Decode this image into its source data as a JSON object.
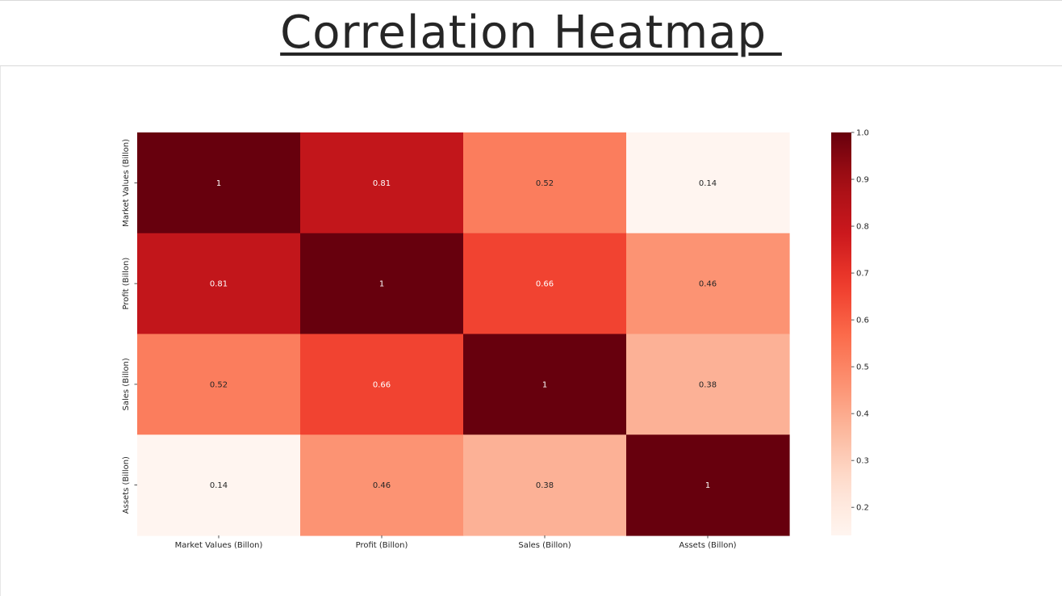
{
  "header": {
    "title": "Correlation Heatmap "
  },
  "chart_data": {
    "type": "heatmap",
    "title": "",
    "xlabel": "",
    "ylabel": "",
    "x_categories": [
      "Market Values (Billon)",
      "Profit (Billon)",
      "Sales (Billon)",
      "Assets (Billon)"
    ],
    "y_categories": [
      "Market Values (Billon)",
      "Profit (Billon)",
      "Sales (Billon)",
      "Assets (Billon)"
    ],
    "values": [
      [
        1,
        0.81,
        0.52,
        0.14
      ],
      [
        0.81,
        1,
        0.66,
        0.46
      ],
      [
        0.52,
        0.66,
        1,
        0.38
      ],
      [
        0.14,
        0.46,
        0.38,
        1
      ]
    ],
    "cell_labels": [
      [
        "1",
        "0.81",
        "0.52",
        "0.14"
      ],
      [
        "0.81",
        "1",
        "0.66",
        "0.46"
      ],
      [
        "0.52",
        "0.66",
        "1",
        "0.38"
      ],
      [
        "0.14",
        "0.46",
        "0.38",
        "1"
      ]
    ],
    "colormap": "Reds",
    "vmin": 0.14,
    "vmax": 1.0,
    "colorbar_ticks": [
      0.2,
      0.3,
      0.4,
      0.5,
      0.6,
      0.7,
      0.8,
      0.9,
      1.0
    ],
    "colorbar_tick_labels": [
      "0.2",
      "0.3",
      "0.4",
      "0.5",
      "0.6",
      "0.7",
      "0.8",
      "0.9",
      "1.0"
    ],
    "annotation_colors": {
      "dark": "#262626",
      "light": "#ffffff"
    }
  }
}
